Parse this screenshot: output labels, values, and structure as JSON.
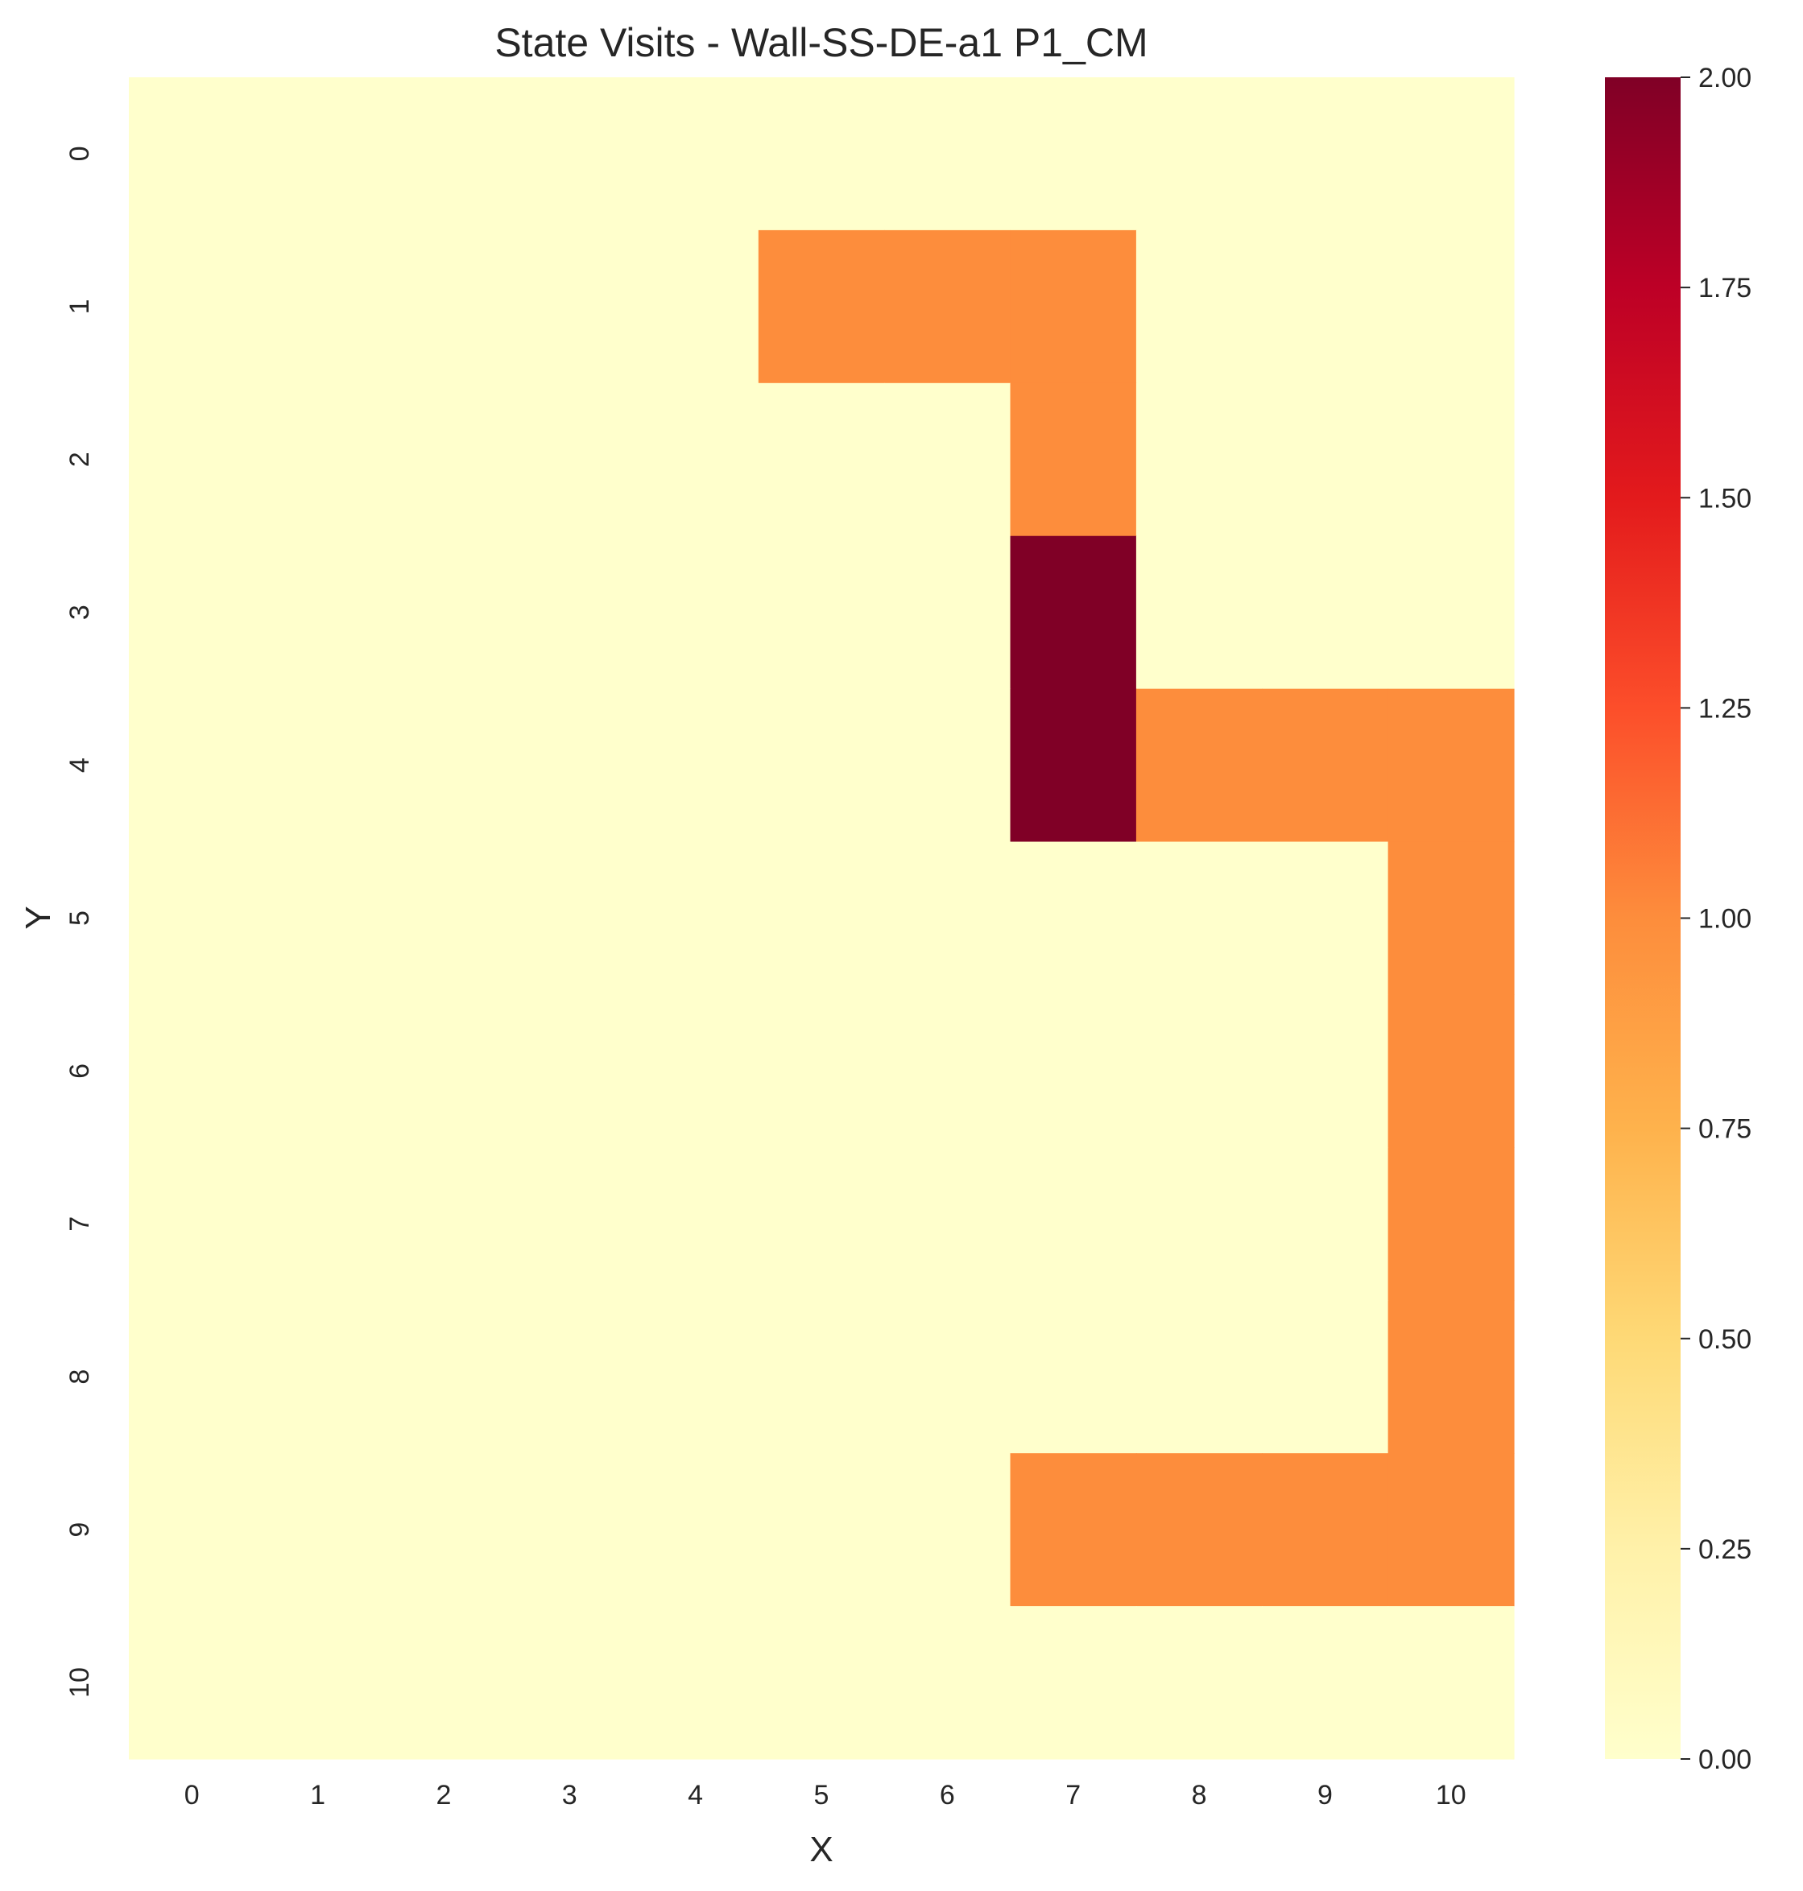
{
  "chart_data": {
    "type": "heatmap",
    "title": "State Visits - Wall-SS-DE-a1 P1_CM",
    "xlabel": "X",
    "ylabel": "Y",
    "x_categories": [
      "0",
      "1",
      "2",
      "3",
      "4",
      "5",
      "6",
      "7",
      "8",
      "9",
      "10"
    ],
    "y_categories": [
      "0",
      "1",
      "2",
      "3",
      "4",
      "5",
      "6",
      "7",
      "8",
      "9",
      "10"
    ],
    "values": [
      [
        0,
        0,
        0,
        0,
        0,
        0,
        0,
        0,
        0,
        0,
        0
      ],
      [
        0,
        0,
        0,
        0,
        0,
        1,
        1,
        1,
        0,
        0,
        0
      ],
      [
        0,
        0,
        0,
        0,
        0,
        0,
        0,
        1,
        0,
        0,
        0
      ],
      [
        0,
        0,
        0,
        0,
        0,
        0,
        0,
        2,
        0,
        0,
        0
      ],
      [
        0,
        0,
        0,
        0,
        0,
        0,
        0,
        2,
        1,
        1,
        1
      ],
      [
        0,
        0,
        0,
        0,
        0,
        0,
        0,
        0,
        0,
        0,
        1
      ],
      [
        0,
        0,
        0,
        0,
        0,
        0,
        0,
        0,
        0,
        0,
        1
      ],
      [
        0,
        0,
        0,
        0,
        0,
        0,
        0,
        0,
        0,
        0,
        1
      ],
      [
        0,
        0,
        0,
        0,
        0,
        0,
        0,
        0,
        0,
        0,
        1
      ],
      [
        0,
        0,
        0,
        0,
        0,
        0,
        0,
        1,
        1,
        1,
        1
      ],
      [
        0,
        0,
        0,
        0,
        0,
        0,
        0,
        0,
        0,
        0,
        0
      ]
    ],
    "colorbar": {
      "min": 0,
      "max": 2,
      "ticks": [
        "0.00",
        "0.25",
        "0.50",
        "0.75",
        "1.00",
        "1.25",
        "1.50",
        "1.75",
        "2.00"
      ],
      "colormap": "YlOrRd",
      "colors": {
        "0.00": "#ffffcc",
        "0.25": "#fff1a9",
        "0.50": "#fed976",
        "0.75": "#feb24c",
        "1.00": "#fd8d3c",
        "1.25": "#fc4e2a",
        "1.50": "#e31a1c",
        "1.75": "#bd0026",
        "2.00": "#800026"
      }
    },
    "grid": false
  }
}
